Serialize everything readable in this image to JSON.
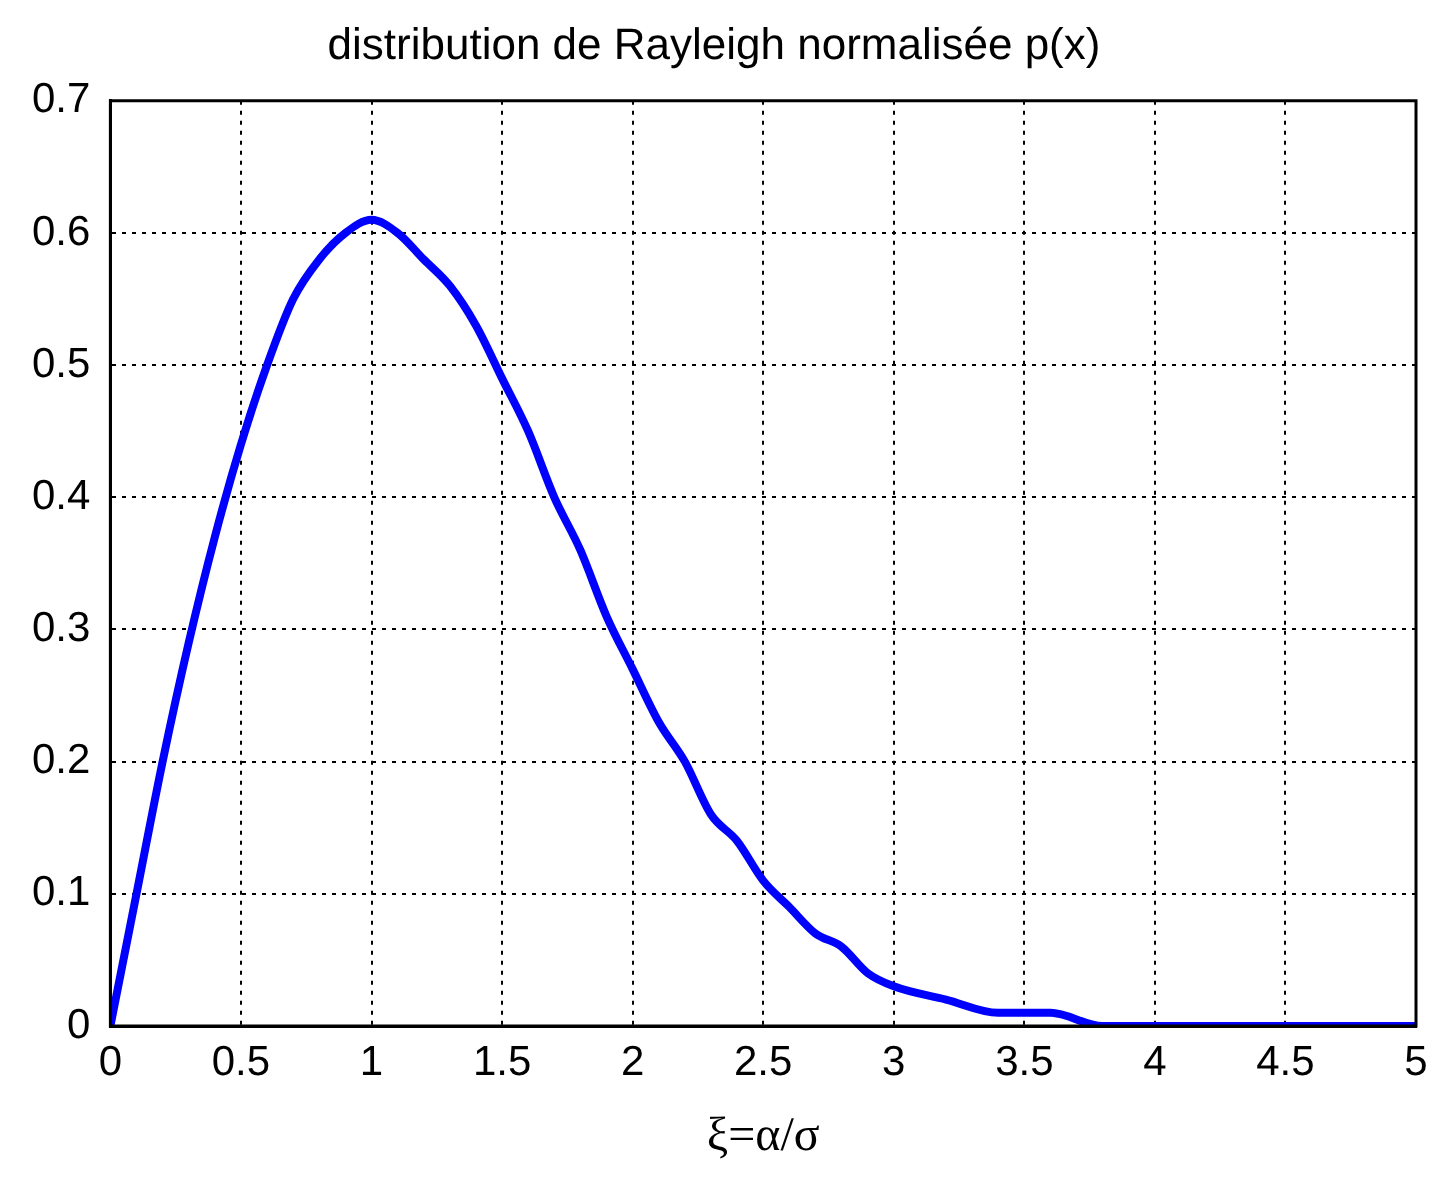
{
  "chart_data": {
    "type": "line",
    "title": "distribution de Rayleigh normalisée p(x)",
    "xlabel": "ξ=α/σ",
    "x": [
      0,
      0.1,
      0.2,
      0.3,
      0.4,
      0.5,
      0.6,
      0.7,
      0.8,
      0.9,
      1.0,
      1.1,
      1.2,
      1.3,
      1.4,
      1.5,
      1.6,
      1.7,
      1.8,
      1.9,
      2.0,
      2.1,
      2.2,
      2.3,
      2.4,
      2.5,
      2.6,
      2.7,
      2.8,
      2.9,
      3.0,
      3.2,
      3.4,
      3.6,
      3.8,
      4.0,
      4.5,
      5.0
    ],
    "series": [
      {
        "color": "#0000ff",
        "values": [
          0,
          0.1,
          0.2,
          0.29,
          0.37,
          0.44,
          0.5,
          0.55,
          0.58,
          0.6,
          0.61,
          0.6,
          0.58,
          0.56,
          0.53,
          0.49,
          0.45,
          0.4,
          0.36,
          0.31,
          0.27,
          0.23,
          0.2,
          0.16,
          0.14,
          0.11,
          0.09,
          0.07,
          0.06,
          0.04,
          0.03,
          0.02,
          0.01,
          0.01,
          0,
          0,
          0,
          0
        ]
      }
    ],
    "xlim": [
      0,
      5
    ],
    "xticks": [
      0,
      0.5,
      1,
      1.5,
      2,
      2.5,
      3,
      3.5,
      4,
      4.5,
      5
    ],
    "ylim": [
      0,
      0.7
    ],
    "yticks": [
      0,
      0.1,
      0.2,
      0.3,
      0.4,
      0.5,
      0.6,
      0.7
    ],
    "grid": true,
    "line_style": "solid",
    "marker": "none",
    "legend": false
  }
}
